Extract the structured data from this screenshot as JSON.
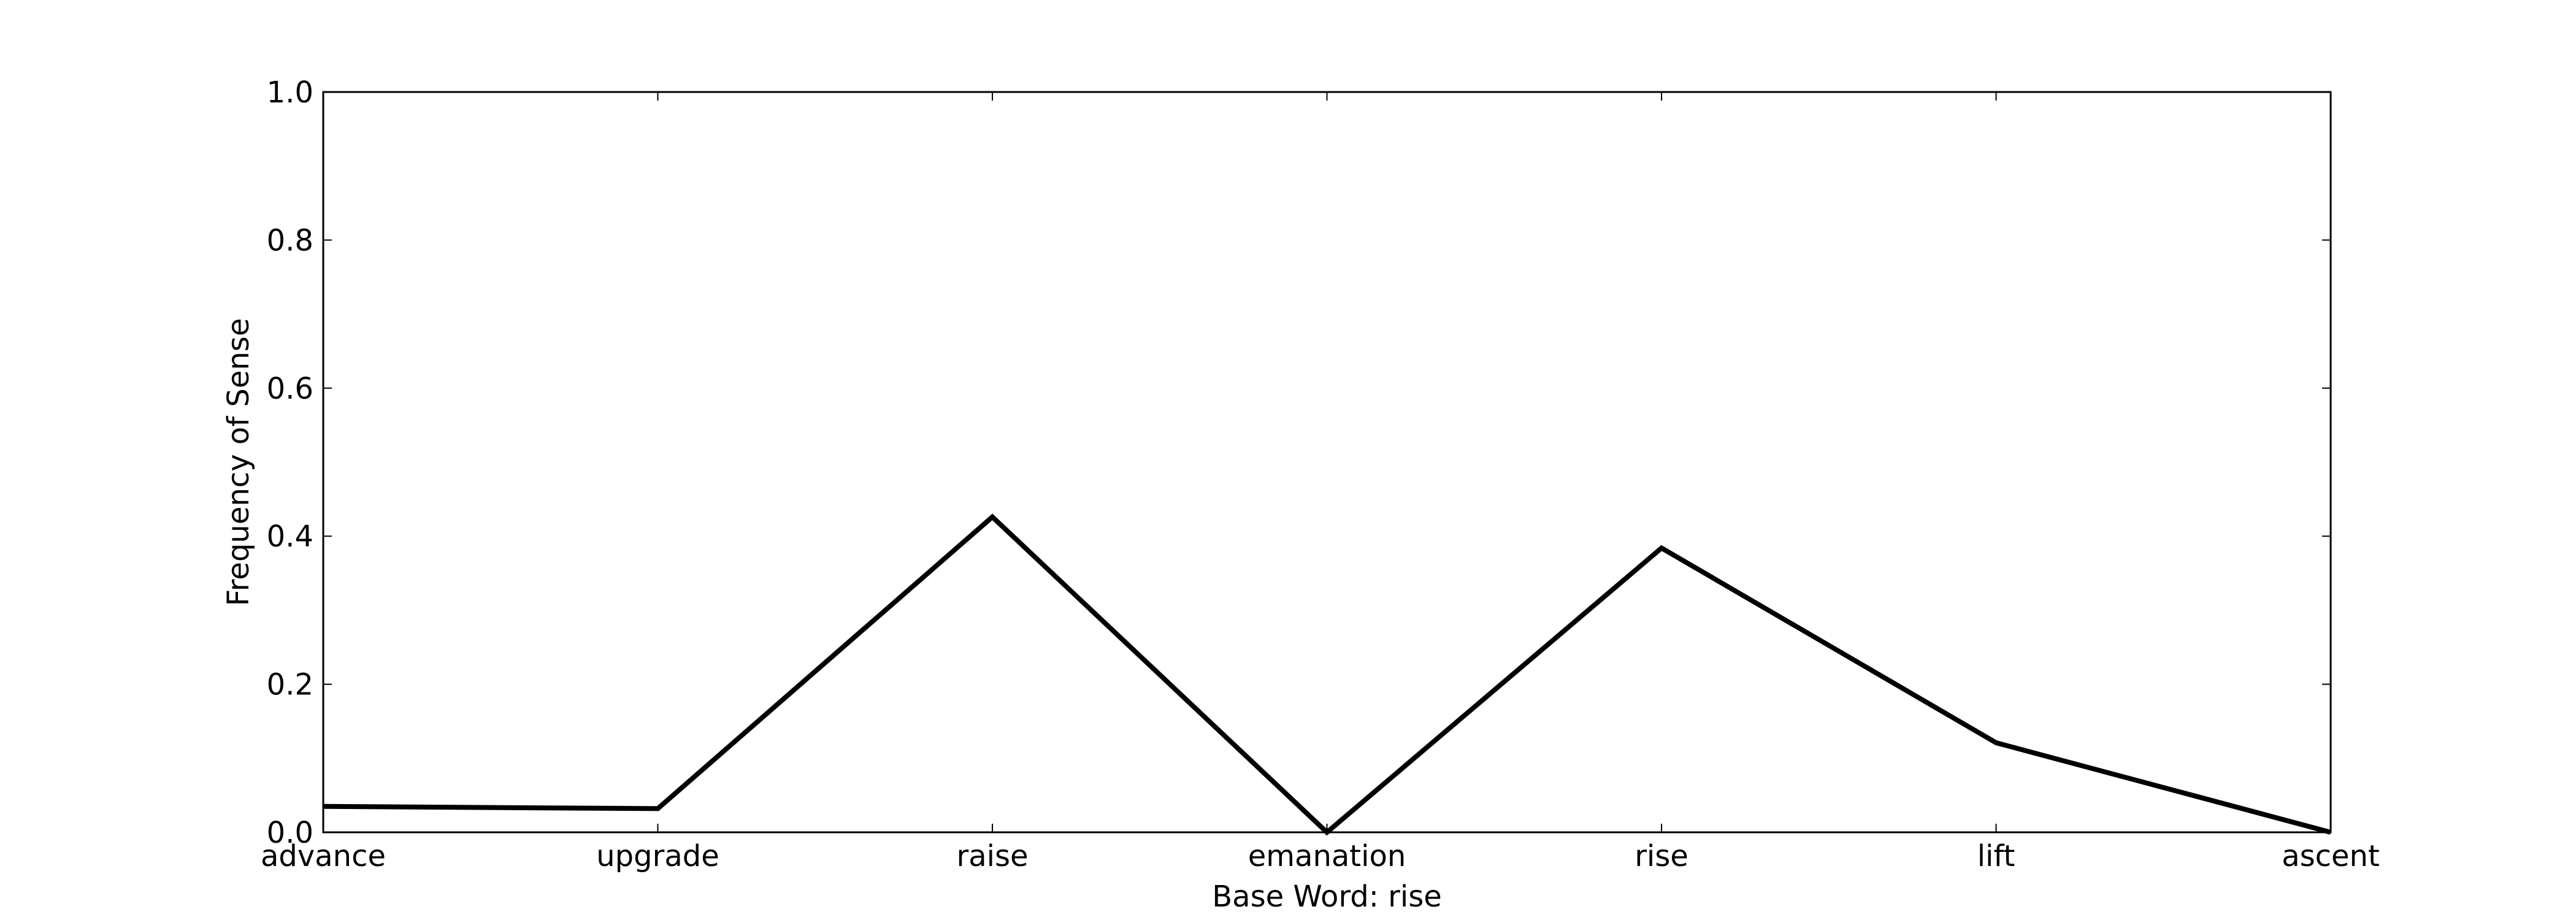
{
  "chart_data": {
    "type": "line",
    "title": "",
    "xlabel": "Base Word: rise",
    "ylabel": "Frequency of Sense",
    "categories": [
      "advance",
      "upgrade",
      "raise",
      "emanation",
      "rise",
      "lift",
      "ascent"
    ],
    "series": [
      {
        "values": [
          0.035,
          0.032,
          0.426,
          0.0,
          0.384,
          0.121,
          0.0
        ],
        "color": "#000000"
      }
    ],
    "ylim": [
      0,
      1.0
    ],
    "yticks": [
      "0.0",
      "0.2",
      "0.4",
      "0.6",
      "0.8",
      "1.0"
    ],
    "grid": false,
    "legend": "none"
  }
}
